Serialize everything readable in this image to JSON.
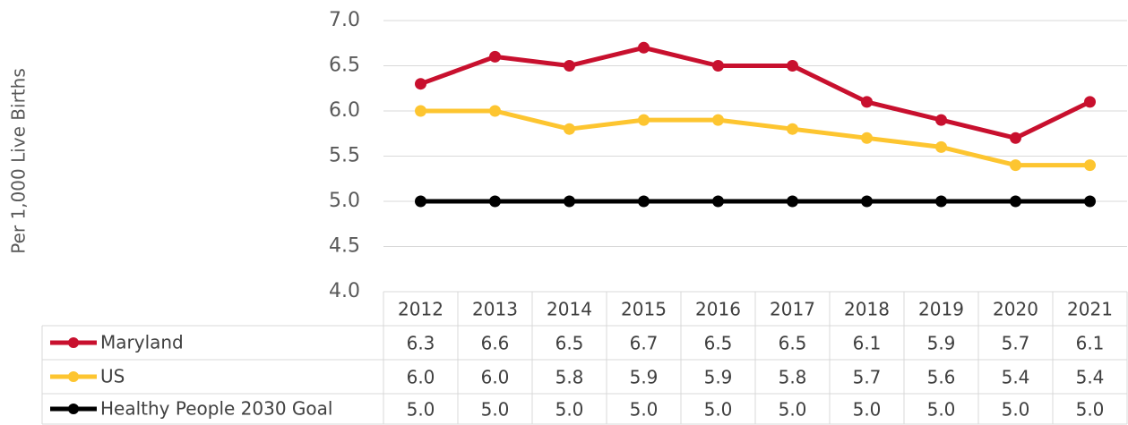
{
  "chart_data": {
    "type": "line",
    "y_label": "Per 1,000 Live Births",
    "categories": [
      "2012",
      "2013",
      "2014",
      "2015",
      "2016",
      "2017",
      "2018",
      "2019",
      "2020",
      "2021"
    ],
    "series": [
      {
        "name": "Maryland",
        "color": "#c8102e",
        "values": [
          6.3,
          6.6,
          6.5,
          6.7,
          6.5,
          6.5,
          6.1,
          5.9,
          5.7,
          6.1
        ],
        "value_labels": [
          "6.3",
          "6.6",
          "6.5",
          "6.7",
          "6.5",
          "6.5",
          "6.1",
          "5.9",
          "5.7",
          "6.1"
        ]
      },
      {
        "name": "US",
        "color": "#fdc530",
        "values": [
          6.0,
          6.0,
          5.8,
          5.9,
          5.9,
          5.8,
          5.7,
          5.6,
          5.4,
          5.4
        ],
        "value_labels": [
          "6.0",
          "6.0",
          "5.8",
          "5.9",
          "5.9",
          "5.8",
          "5.7",
          "5.6",
          "5.4",
          "5.4"
        ]
      },
      {
        "name": "Healthy People 2030 Goal",
        "color": "#000000",
        "values": [
          5.0,
          5.0,
          5.0,
          5.0,
          5.0,
          5.0,
          5.0,
          5.0,
          5.0,
          5.0
        ],
        "value_labels": [
          "5.0",
          "5.0",
          "5.0",
          "5.0",
          "5.0",
          "5.0",
          "5.0",
          "5.0",
          "5.0",
          "5.0"
        ]
      }
    ],
    "ylim": [
      4,
      7
    ],
    "yticks": [
      {
        "value": 4,
        "label": "4.0"
      },
      {
        "value": 4.5,
        "label": "4.5"
      },
      {
        "value": 5,
        "label": "5.0"
      },
      {
        "value": 5.5,
        "label": "5.5"
      },
      {
        "value": 6,
        "label": "6.0"
      },
      {
        "value": 6.5,
        "label": "6.5"
      },
      {
        "value": 7,
        "label": "7.0"
      }
    ],
    "grid": true
  }
}
